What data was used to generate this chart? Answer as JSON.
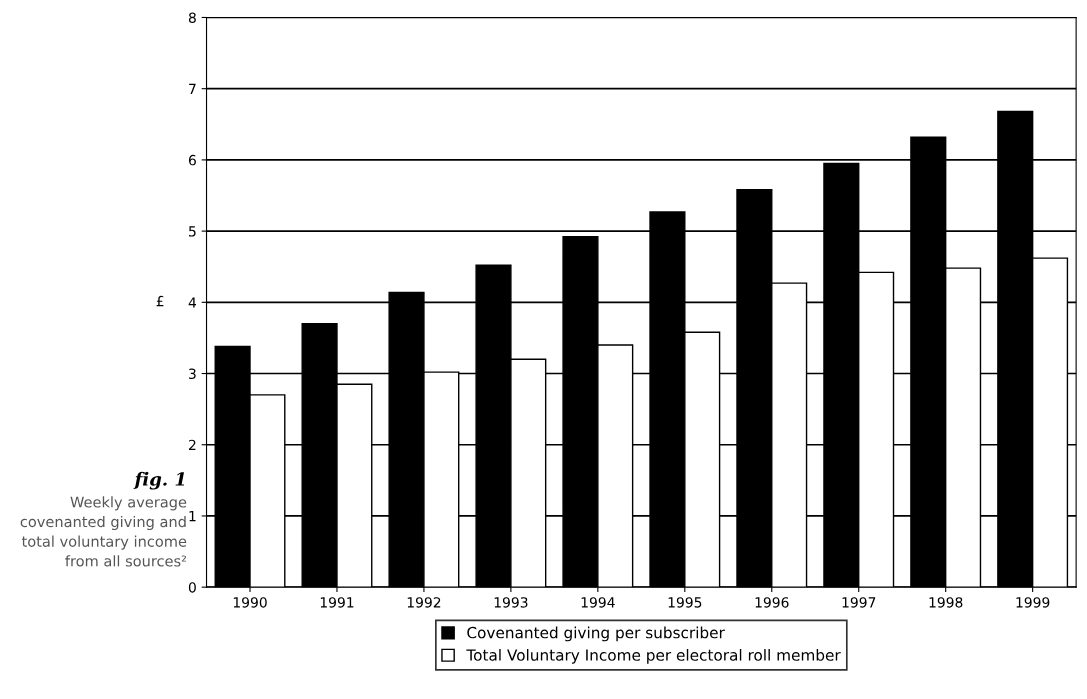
{
  "chart_data": {
    "type": "bar",
    "ylabel": "£",
    "categories": [
      "1990",
      "1991",
      "1992",
      "1993",
      "1994",
      "1995",
      "1996",
      "1997",
      "1998",
      "1999"
    ],
    "series": [
      {
        "name": "Covenanted giving per subscriber",
        "color": "#000000",
        "values": [
          3.38,
          3.7,
          4.14,
          4.52,
          4.92,
          5.27,
          5.58,
          5.95,
          6.32,
          6.68
        ]
      },
      {
        "name": "Total Voluntary Income per electoral roll member",
        "color": "#ffffff",
        "values": [
          2.7,
          2.85,
          3.02,
          3.2,
          3.4,
          3.58,
          4.27,
          4.42,
          4.48,
          4.62
        ]
      }
    ],
    "ylim": [
      0,
      8
    ],
    "yticks": [
      0,
      1,
      2,
      3,
      4,
      5,
      6,
      7,
      8
    ],
    "grid": "y",
    "legend": "bottom",
    "annotations": [
      "fig. 1",
      "Weekly average covenanted giving and total voluntary income from all sources²"
    ]
  }
}
